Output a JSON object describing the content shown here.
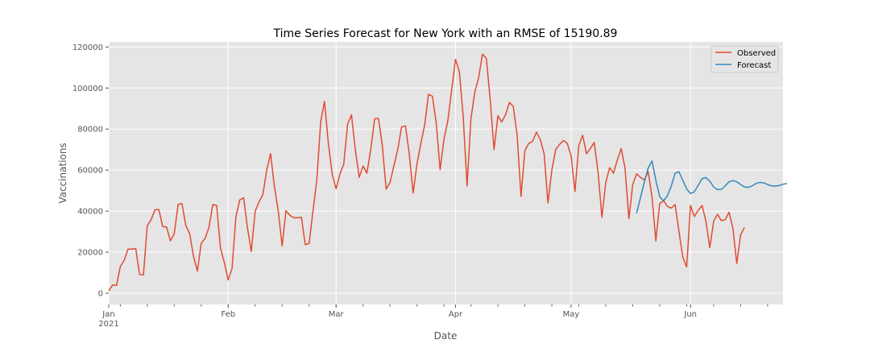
{
  "chart_data": {
    "type": "line",
    "title": "Time Series Forecast for New York with an RMSE of 15190.89",
    "xlabel": "Date",
    "ylabel": "Vaccinations",
    "x_start": "2021-01-01",
    "x_end": "2021-06-25",
    "ylim": [
      -5500,
      122500
    ],
    "y_ticks": [
      0,
      20000,
      40000,
      60000,
      80000,
      100000,
      120000
    ],
    "y_tick_labels": [
      "0",
      "20000",
      "40000",
      "60000",
      "80000",
      "100000",
      "120000"
    ],
    "x_major_ticks": [
      {
        "date": "2021-01-01",
        "label": "Jan",
        "sublabel": "2021"
      },
      {
        "date": "2021-02-01",
        "label": "Feb"
      },
      {
        "date": "2021-03-01",
        "label": "Mar"
      },
      {
        "date": "2021-04-01",
        "label": "Apr"
      },
      {
        "date": "2021-05-01",
        "label": "May"
      },
      {
        "date": "2021-06-01",
        "label": "Jun"
      }
    ],
    "grid": true,
    "legend_position": "top-right",
    "series": [
      {
        "name": "Observed",
        "color": "#E24A33",
        "start_date": "2021-01-01",
        "values": [
          1200,
          4000,
          3800,
          13000,
          16000,
          21500,
          21500,
          21800,
          9200,
          8900,
          33000,
          35800,
          40700,
          40800,
          32500,
          32300,
          25500,
          29000,
          43300,
          43700,
          33000,
          29000,
          18000,
          10800,
          24300,
          26700,
          32000,
          43200,
          42800,
          22000,
          15000,
          6500,
          12000,
          37200,
          45500,
          46500,
          32000,
          20300,
          40000,
          44500,
          48000,
          60000,
          68000,
          52000,
          40000,
          23000,
          40200,
          38000,
          36800,
          36800,
          37000,
          23700,
          24200,
          40000,
          55000,
          83500,
          93500,
          73000,
          58000,
          50900,
          58000,
          63000,
          82500,
          87000,
          70000,
          56500,
          62000,
          58500,
          70000,
          85000,
          85200,
          72000,
          50700,
          54000,
          62000,
          70000,
          81000,
          81600,
          68000,
          48800,
          63000,
          73000,
          82000,
          97000,
          96000,
          83000,
          60200,
          75000,
          84000,
          99000,
          114000,
          108000,
          86000,
          52300,
          85000,
          98000,
          105000,
          116500,
          114500,
          94500,
          70000,
          86500,
          83500,
          87000,
          93000,
          91000,
          77000,
          47200,
          69500,
          73000,
          74000,
          78500,
          75000,
          68000,
          44000,
          60000,
          70000,
          72500,
          74500,
          73000,
          67000,
          49500,
          72000,
          77000,
          68000,
          70500,
          73500,
          59000,
          37000,
          54000,
          61200,
          58500,
          65000,
          70500,
          61000,
          36300,
          53000,
          58200,
          56500,
          55200,
          59300,
          47000,
          25500,
          43700,
          45100,
          42300,
          41500,
          43200,
          30000,
          17500,
          12800,
          42800,
          37400,
          40400,
          42800,
          35000,
          22200,
          35100,
          38500,
          35400,
          35800,
          39500,
          31600,
          14500,
          28500,
          32000
        ]
      },
      {
        "name": "Forecast",
        "color": "#348ABD",
        "start_date": "2021-05-18",
        "values": [
          39000,
          46500,
          54000,
          61000,
          64500,
          55000,
          47000,
          45000,
          47500,
          52300,
          58500,
          59200,
          55000,
          50800,
          48600,
          49400,
          52600,
          55800,
          56400,
          54600,
          51800,
          50500,
          50600,
          52300,
          54300,
          54900,
          54300,
          53000,
          51800,
          51600,
          52300,
          53500,
          54000,
          53800,
          53000,
          52300,
          52200,
          52500,
          53100,
          53500
        ]
      }
    ]
  }
}
